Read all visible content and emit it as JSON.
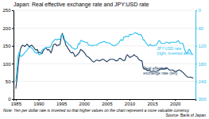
{
  "chart_data": {
    "type": "line",
    "title": "Japan: Real effective exchange rate and JPY:USD rate",
    "note": "Note: Yen per dollar rate is inverted so that higher values on the chart represent a more valuable currency.",
    "source": "Source: Bank of Japan",
    "annotations": [
      {
        "text": "JPY:USD rate\n(right, inverted axis)",
        "x": 2016.0,
        "y": 148,
        "color": "#2bbfee"
      },
      {
        "text": "Real effective\nexchange rate (left)",
        "x": 2013.0,
        "y": 92,
        "color": "#1a3a5c"
      }
    ],
    "x": [
      1985.0,
      1985.25,
      1985.5,
      1985.75,
      1986.0,
      1986.25,
      1986.5,
      1986.75,
      1987.0,
      1987.25,
      1987.5,
      1987.75,
      1988.0,
      1988.25,
      1988.5,
      1988.75,
      1989.0,
      1989.25,
      1989.5,
      1989.75,
      1990.0,
      1990.25,
      1990.5,
      1990.75,
      1991.0,
      1991.25,
      1991.5,
      1991.75,
      1992.0,
      1992.25,
      1992.5,
      1992.75,
      1993.0,
      1993.25,
      1993.5,
      1993.75,
      1994.0,
      1994.25,
      1994.5,
      1994.75,
      1995.0,
      1995.25,
      1995.5,
      1995.75,
      1996.0,
      1996.25,
      1996.5,
      1996.75,
      1997.0,
      1997.25,
      1997.5,
      1997.75,
      1998.0,
      1998.25,
      1998.5,
      1998.75,
      1999.0,
      1999.25,
      1999.5,
      1999.75,
      2000.0,
      2000.25,
      2000.5,
      2000.75,
      2001.0,
      2001.25,
      2001.5,
      2001.75,
      2002.0,
      2002.25,
      2002.5,
      2002.75,
      2003.0,
      2003.25,
      2003.5,
      2003.75,
      2004.0,
      2004.25,
      2004.5,
      2004.75,
      2005.0,
      2005.25,
      2005.5,
      2005.75,
      2006.0,
      2006.25,
      2006.5,
      2006.75,
      2007.0,
      2007.25,
      2007.5,
      2007.75,
      2008.0,
      2008.25,
      2008.5,
      2008.75,
      2009.0,
      2009.25,
      2009.5,
      2009.75,
      2010.0,
      2010.25,
      2010.5,
      2010.75,
      2011.0,
      2011.25,
      2011.5,
      2011.75,
      2012.0,
      2012.25,
      2012.5,
      2012.75,
      2013.0,
      2013.25,
      2013.5,
      2013.75,
      2014.0,
      2014.25,
      2014.5,
      2014.75,
      2015.0,
      2015.25,
      2015.5,
      2015.75,
      2016.0,
      2016.25,
      2016.5,
      2016.75,
      2017.0,
      2017.25,
      2017.5,
      2017.75,
      2018.0,
      2018.25,
      2018.5,
      2018.75,
      2019.0,
      2019.25,
      2019.5,
      2019.75,
      2020.0,
      2020.25,
      2020.5,
      2020.75,
      2021.0,
      2021.25,
      2021.5,
      2021.75,
      2022.0,
      2022.25,
      2022.5,
      2022.75,
      2023.0,
      2023.25,
      2023.5,
      2023.75,
      2024.0
    ],
    "series": [
      {
        "color": "#1a3a5c",
        "values": [
          30,
          55,
          90,
          120,
          140,
          148,
          152,
          150,
          148,
          152,
          155,
          150,
          148,
          150,
          152,
          148,
          145,
          140,
          138,
          140,
          130,
          132,
          130,
          128,
          135,
          140,
          145,
          142,
          138,
          140,
          135,
          130,
          140,
          152,
          155,
          155,
          150,
          152,
          152,
          155,
          178,
          185,
          170,
          165,
          152,
          148,
          142,
          138,
          132,
          130,
          132,
          128,
          120,
          122,
          125,
          128,
          132,
          140,
          138,
          135,
          132,
          128,
          122,
          120,
          118,
          115,
          112,
          108,
          105,
          105,
          108,
          110,
          110,
          108,
          108,
          110,
          112,
          112,
          110,
          108,
          105,
          108,
          110,
          112,
          112,
          112,
          112,
          110,
          108,
          108,
          110,
          115,
          115,
          112,
          110,
          108,
          110,
          120,
          125,
          122,
          118,
          118,
          120,
          122,
          125,
          122,
          120,
          118,
          112,
          110,
          108,
          108,
          88,
          85,
          85,
          82,
          80,
          82,
          80,
          78,
          78,
          80,
          78,
          78,
          78,
          80,
          82,
          85,
          85,
          85,
          85,
          85,
          88,
          88,
          85,
          82,
          82,
          82,
          82,
          80,
          78,
          78,
          80,
          82,
          82,
          80,
          78,
          75,
          72,
          68,
          65,
          62,
          62,
          62,
          62,
          60,
          60
        ]
      },
      {
        "color": "#2bbfee",
        "axis": "y2",
        "values": [
          240,
          200,
          155,
          140,
          155,
          155,
          152,
          148,
          142,
          138,
          135,
          128,
          125,
          125,
          128,
          130,
          138,
          142,
          145,
          142,
          148,
          150,
          148,
          135,
          132,
          130,
          128,
          125,
          125,
          125,
          125,
          120,
          108,
          105,
          100,
          98,
          100,
          98,
          98,
          98,
          85,
          82,
          85,
          100,
          105,
          108,
          112,
          118,
          118,
          125,
          128,
          128,
          132,
          130,
          128,
          112,
          115,
          102,
          102,
          105,
          105,
          108,
          108,
          110,
          118,
          118,
          118,
          120,
          118,
          118,
          118,
          118,
          115,
          112,
          110,
          108,
          108,
          105,
          105,
          108,
          110,
          110,
          110,
          112,
          115,
          118,
          120,
          118,
          118,
          115,
          112,
          108,
          100,
          100,
          102,
          90,
          90,
          88,
          88,
          90,
          82,
          82,
          82,
          80,
          78,
          75,
          78,
          78,
          82,
          82,
          82,
          88,
          100,
          100,
          108,
          112,
          118,
          120,
          115,
          118,
          120,
          120,
          118,
          118,
          115,
          108,
          102,
          105,
          112,
          112,
          112,
          112,
          108,
          108,
          108,
          112,
          108,
          108,
          108,
          108,
          108,
          108,
          105,
          102,
          110,
          112,
          112,
          112,
          128,
          138,
          145,
          145,
          132,
          132,
          142,
          148,
          150
        ]
      }
    ],
    "xlim": [
      1984.5,
      2024.5
    ],
    "xticks": [
      1985,
      1990,
      1995,
      2000,
      2005,
      2010,
      2015,
      2020
    ],
    "ylim": [
      0,
      250
    ],
    "yticks": [
      0,
      50,
      100,
      150,
      200,
      250
    ],
    "y2lim": [
      300,
      0
    ],
    "y2ticks": [
      300,
      240,
      180,
      120,
      60,
      0
    ],
    "grid": true
  }
}
